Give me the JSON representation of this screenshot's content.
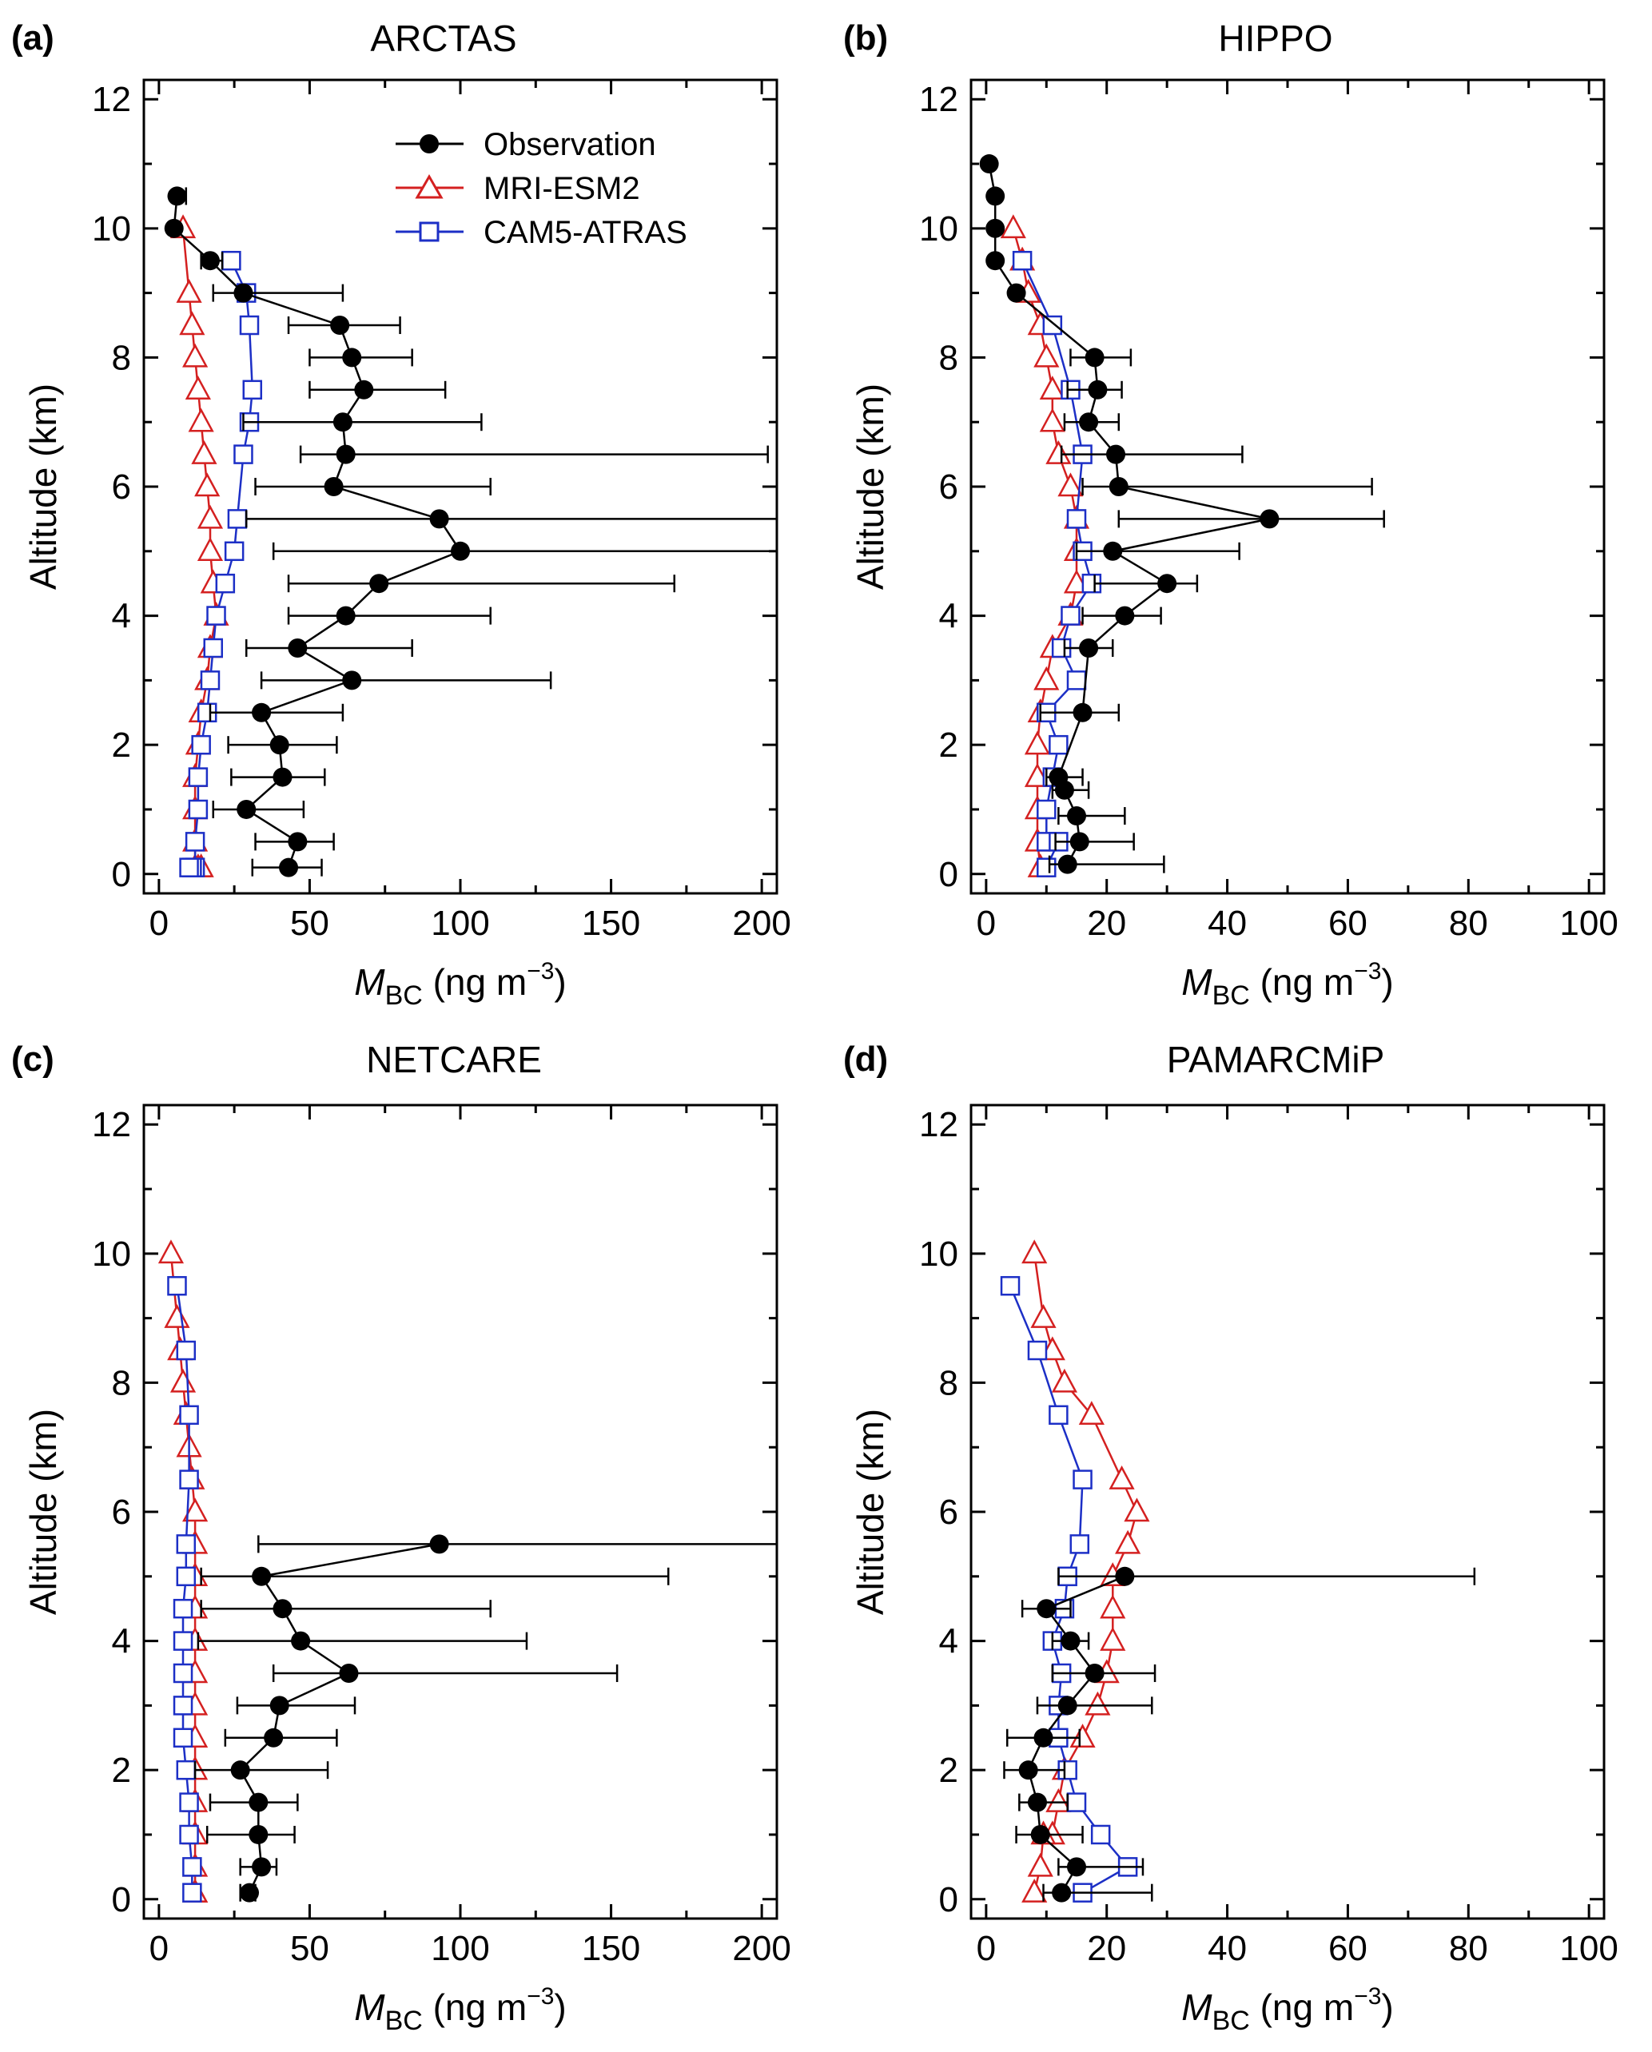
{
  "colors": {
    "obs": "#000000",
    "mri": "#d42020",
    "cam": "#1c2fc6"
  },
  "chart_data": [
    {
      "type": "line",
      "panel_label": "(a)",
      "title": "ARCTAS",
      "xlabel_main": "M",
      "xlabel_sub": "BC",
      "xlabel_unit": " (ng m",
      "xlabel_exp": "−3",
      "xlabel_close": ")",
      "ylabel": "Altitude (km)",
      "xlim": [
        -5,
        205
      ],
      "ylim": [
        -0.3,
        12.3
      ],
      "xticks": [
        0,
        50,
        100,
        150,
        200
      ],
      "yticks": [
        0,
        2,
        4,
        6,
        8,
        10,
        12
      ],
      "legend": {
        "position": "top-right",
        "entries": [
          "Observation",
          "MRI-ESM2",
          "CAM5-ATRAS"
        ]
      },
      "series": [
        {
          "name": "Observation",
          "marker": "circle",
          "color": "obs",
          "x": [
            6,
            5,
            17,
            28,
            60,
            64,
            68,
            61,
            62,
            58,
            93,
            100,
            73,
            62,
            46,
            64,
            34,
            40,
            41,
            29,
            46,
            43
          ],
          "y": [
            10.5,
            10,
            9.5,
            9,
            8.5,
            8,
            7.5,
            7,
            6.5,
            6,
            5.5,
            5,
            4.5,
            4,
            3.5,
            3,
            2.5,
            2,
            1.5,
            1,
            0.5,
            0.1
          ],
          "xerr_low": [
            1,
            0,
            3,
            10,
            17,
            14,
            18,
            33,
            15,
            26,
            64,
            62,
            30,
            19,
            17,
            30,
            17,
            17,
            17,
            11,
            14,
            12
          ],
          "xerr_high": [
            3,
            0,
            4,
            33,
            20,
            20,
            27,
            46,
            140,
            52,
            130,
            130,
            98,
            48,
            38,
            66,
            27,
            19,
            14,
            19,
            12,
            11
          ]
        },
        {
          "name": "MRI-ESM2",
          "marker": "triangle",
          "color": "mri",
          "x": [
            8,
            10,
            11,
            12,
            13,
            14,
            15,
            16,
            17,
            17,
            18,
            19,
            17,
            16,
            14,
            13,
            12,
            12,
            12,
            12,
            13,
            14
          ],
          "y": [
            10,
            9,
            8.5,
            8,
            7.5,
            7,
            6.5,
            6,
            5.5,
            5,
            4.5,
            4,
            3.5,
            3,
            2.5,
            2,
            1.5,
            1,
            0.5,
            0.1,
            0.1,
            0.1
          ]
        },
        {
          "name": "CAM5-ATRAS",
          "marker": "square",
          "color": "cam",
          "x": [
            24,
            29,
            30,
            31,
            30,
            28,
            26,
            25,
            22,
            19,
            18,
            17,
            16,
            14,
            13,
            13,
            12,
            12,
            11,
            10
          ],
          "y": [
            9.5,
            9,
            8.5,
            7.5,
            7,
            6.5,
            5.5,
            5,
            4.5,
            4,
            3.5,
            3,
            2.5,
            2,
            1.5,
            1,
            0.5,
            0.1,
            0.1,
            0.1
          ]
        }
      ]
    },
    {
      "type": "line",
      "panel_label": "(b)",
      "title": "HIPPO",
      "xlabel_main": "M",
      "xlabel_sub": "BC",
      "xlabel_unit": " (ng m",
      "xlabel_exp": "−3",
      "xlabel_close": ")",
      "ylabel": "Altitude (km)",
      "xlim": [
        -2.5,
        102.5
      ],
      "ylim": [
        -0.3,
        12.3
      ],
      "xticks": [
        0,
        20,
        40,
        60,
        80,
        100
      ],
      "yticks": [
        0,
        2,
        4,
        6,
        8,
        10,
        12
      ],
      "series": [
        {
          "name": "Observation",
          "marker": "circle",
          "color": "obs",
          "x": [
            0.5,
            1.5,
            1.5,
            1.5,
            5,
            18,
            18.5,
            17,
            21.5,
            22,
            47,
            21,
            30,
            23,
            17,
            16,
            12,
            13,
            15,
            15.5,
            13.5
          ],
          "y": [
            11,
            10.5,
            10,
            9.5,
            9,
            8,
            7.5,
            7,
            6.5,
            6,
            5.5,
            5,
            4.5,
            4,
            3.5,
            2.5,
            1.5,
            1.3,
            0.9,
            0.5,
            0.15
          ],
          "xerr_low": [
            0,
            0,
            0,
            0,
            0,
            4,
            5,
            4,
            9,
            6,
            25,
            6,
            12,
            7,
            4,
            7,
            2,
            2,
            3,
            4,
            3
          ],
          "xerr_high": [
            0,
            0,
            0,
            0,
            0,
            6,
            4,
            5,
            21,
            42,
            19,
            21,
            5,
            6,
            4,
            6,
            4,
            4,
            8,
            9,
            16
          ]
        },
        {
          "name": "MRI-ESM2",
          "marker": "triangle",
          "color": "mri",
          "x": [
            4.5,
            6,
            7,
            9,
            10,
            11,
            11,
            12,
            14,
            15,
            15,
            15,
            14,
            11,
            10,
            9,
            8.5,
            8.5,
            8.5,
            8.5,
            9
          ],
          "y": [
            10,
            9.5,
            9,
            8.5,
            8,
            7.5,
            7,
            6.5,
            6,
            5.5,
            5,
            4.5,
            4,
            3.5,
            3,
            2.5,
            2,
            1.5,
            1,
            0.5,
            0.1
          ]
        },
        {
          "name": "CAM5-ATRAS",
          "marker": "square",
          "color": "cam",
          "x": [
            6,
            11,
            14,
            16,
            15,
            16,
            17.5,
            14,
            12.5,
            15,
            10,
            12,
            11,
            10,
            10,
            12,
            10
          ],
          "y": [
            9.5,
            8.5,
            7.5,
            6.5,
            5.5,
            5,
            4.5,
            4,
            3.5,
            3,
            2.5,
            2,
            1.5,
            1,
            0.5,
            0.5,
            0.1
          ]
        }
      ]
    },
    {
      "type": "line",
      "panel_label": "(c)",
      "title": "NETCARE",
      "xlabel_main": "M",
      "xlabel_sub": "BC",
      "xlabel_unit": " (ng m",
      "xlabel_exp": "−3",
      "xlabel_close": ")",
      "ylabel": "Altitude (km)",
      "xlim": [
        -5,
        205
      ],
      "ylim": [
        -0.3,
        12.3
      ],
      "xticks": [
        0,
        50,
        100,
        150,
        200
      ],
      "yticks": [
        0,
        2,
        4,
        6,
        8,
        10,
        12
      ],
      "series": [
        {
          "name": "Observation",
          "marker": "circle",
          "color": "obs",
          "x": [
            93,
            34,
            41,
            47,
            63,
            40,
            38,
            27,
            33,
            33,
            34,
            30
          ],
          "y": [
            5.5,
            5,
            4.5,
            4,
            3.5,
            3,
            2.5,
            2,
            1.5,
            1,
            0.5,
            0.1
          ],
          "xerr_low": [
            60,
            20,
            27,
            34,
            25,
            14,
            16,
            15,
            16,
            17,
            7,
            3
          ],
          "xerr_high": [
            115,
            135,
            69,
            75,
            89,
            25,
            21,
            29,
            13,
            12,
            5,
            2
          ]
        },
        {
          "name": "MRI-ESM2",
          "marker": "triangle",
          "color": "mri",
          "x": [
            4,
            6,
            7,
            8,
            9,
            10,
            11,
            12,
            12,
            12,
            12,
            12,
            12,
            12,
            12,
            12,
            12,
            12,
            12,
            12,
            12
          ],
          "y": [
            10,
            9,
            8.5,
            8,
            7.5,
            7,
            6.5,
            6,
            5.5,
            5,
            4.5,
            4,
            3.5,
            3,
            2.5,
            2,
            1.5,
            1,
            0.5,
            0.1,
            0.1
          ]
        },
        {
          "name": "CAM5-ATRAS",
          "marker": "square",
          "color": "cam",
          "x": [
            6,
            9,
            10,
            10,
            9,
            9,
            8,
            8,
            8,
            8,
            8,
            9,
            10,
            10,
            11,
            11
          ],
          "y": [
            9.5,
            8.5,
            7.5,
            6.5,
            5.5,
            5,
            4.5,
            4,
            3.5,
            3,
            2.5,
            2,
            1.5,
            1,
            0.5,
            0.1
          ]
        }
      ]
    },
    {
      "type": "line",
      "panel_label": "(d)",
      "title": "PAMARCMiP",
      "xlabel_main": "M",
      "xlabel_sub": "BC",
      "xlabel_unit": " (ng m",
      "xlabel_exp": "−3",
      "xlabel_close": ")",
      "ylabel": "Altitude (km)",
      "xlim": [
        -2.5,
        102.5
      ],
      "ylim": [
        -0.3,
        12.3
      ],
      "xticks": [
        0,
        20,
        40,
        60,
        80,
        100
      ],
      "yticks": [
        0,
        2,
        4,
        6,
        8,
        10,
        12
      ],
      "series": [
        {
          "name": "Observation",
          "marker": "circle",
          "color": "obs",
          "x": [
            23,
            10,
            14,
            18,
            13.5,
            9.5,
            7,
            8.5,
            9,
            15,
            12.5
          ],
          "y": [
            5,
            4.5,
            4,
            3.5,
            3,
            2.5,
            2,
            1.5,
            1,
            0.5,
            0.1
          ],
          "xerr_low": [
            11,
            4,
            3,
            7,
            5,
            6,
            4,
            3,
            4,
            3,
            3
          ],
          "xerr_high": [
            58,
            4,
            3,
            10,
            14,
            6,
            6,
            5,
            7,
            11,
            15
          ]
        },
        {
          "name": "MRI-ESM2",
          "marker": "triangle",
          "color": "mri",
          "x": [
            8,
            9.5,
            11,
            13,
            17.5,
            22.5,
            25,
            23.5,
            21,
            21,
            21,
            20,
            18.5,
            16,
            13,
            12,
            11,
            9.5,
            9,
            8
          ],
          "y": [
            10,
            9,
            8.5,
            8,
            7.5,
            6.5,
            6,
            5.5,
            5,
            4.5,
            4,
            3.5,
            3,
            2.5,
            2,
            1.5,
            1,
            1,
            0.5,
            0.1
          ]
        },
        {
          "name": "CAM5-ATRAS",
          "marker": "square",
          "color": "cam",
          "x": [
            4,
            8.5,
            12,
            16,
            15.5,
            13.5,
            13,
            11,
            12.5,
            12,
            12,
            13.5,
            15,
            19,
            23.5,
            16
          ],
          "y": [
            9.5,
            8.5,
            7.5,
            6.5,
            5.5,
            5,
            4.5,
            4,
            3.5,
            3,
            2.5,
            2,
            1.5,
            1,
            0.5,
            0.1
          ]
        }
      ]
    }
  ]
}
